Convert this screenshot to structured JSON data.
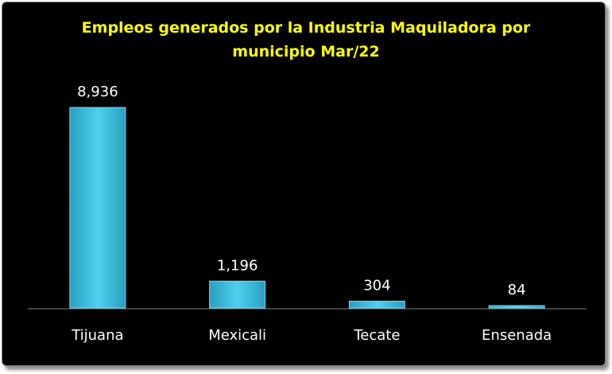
{
  "chart_data": {
    "type": "bar",
    "title_lines": [
      "Empleos generados por la Industria Maquiladora por",
      "municipio Mar/22"
    ],
    "categories": [
      "Tijuana",
      "Mexicali",
      "Tecate",
      "Ensenada"
    ],
    "values": [
      8936,
      1196,
      304,
      84
    ],
    "data_labels": [
      "8,936",
      "1,196",
      "304",
      "84"
    ],
    "xlabel": "",
    "ylabel": "",
    "ylim": [
      0,
      8936
    ],
    "grid": false,
    "legend": "none",
    "colors": {
      "background": "#000000",
      "bar": "#3ec4e6",
      "title": "#ffff00",
      "text": "#ffffff"
    }
  }
}
